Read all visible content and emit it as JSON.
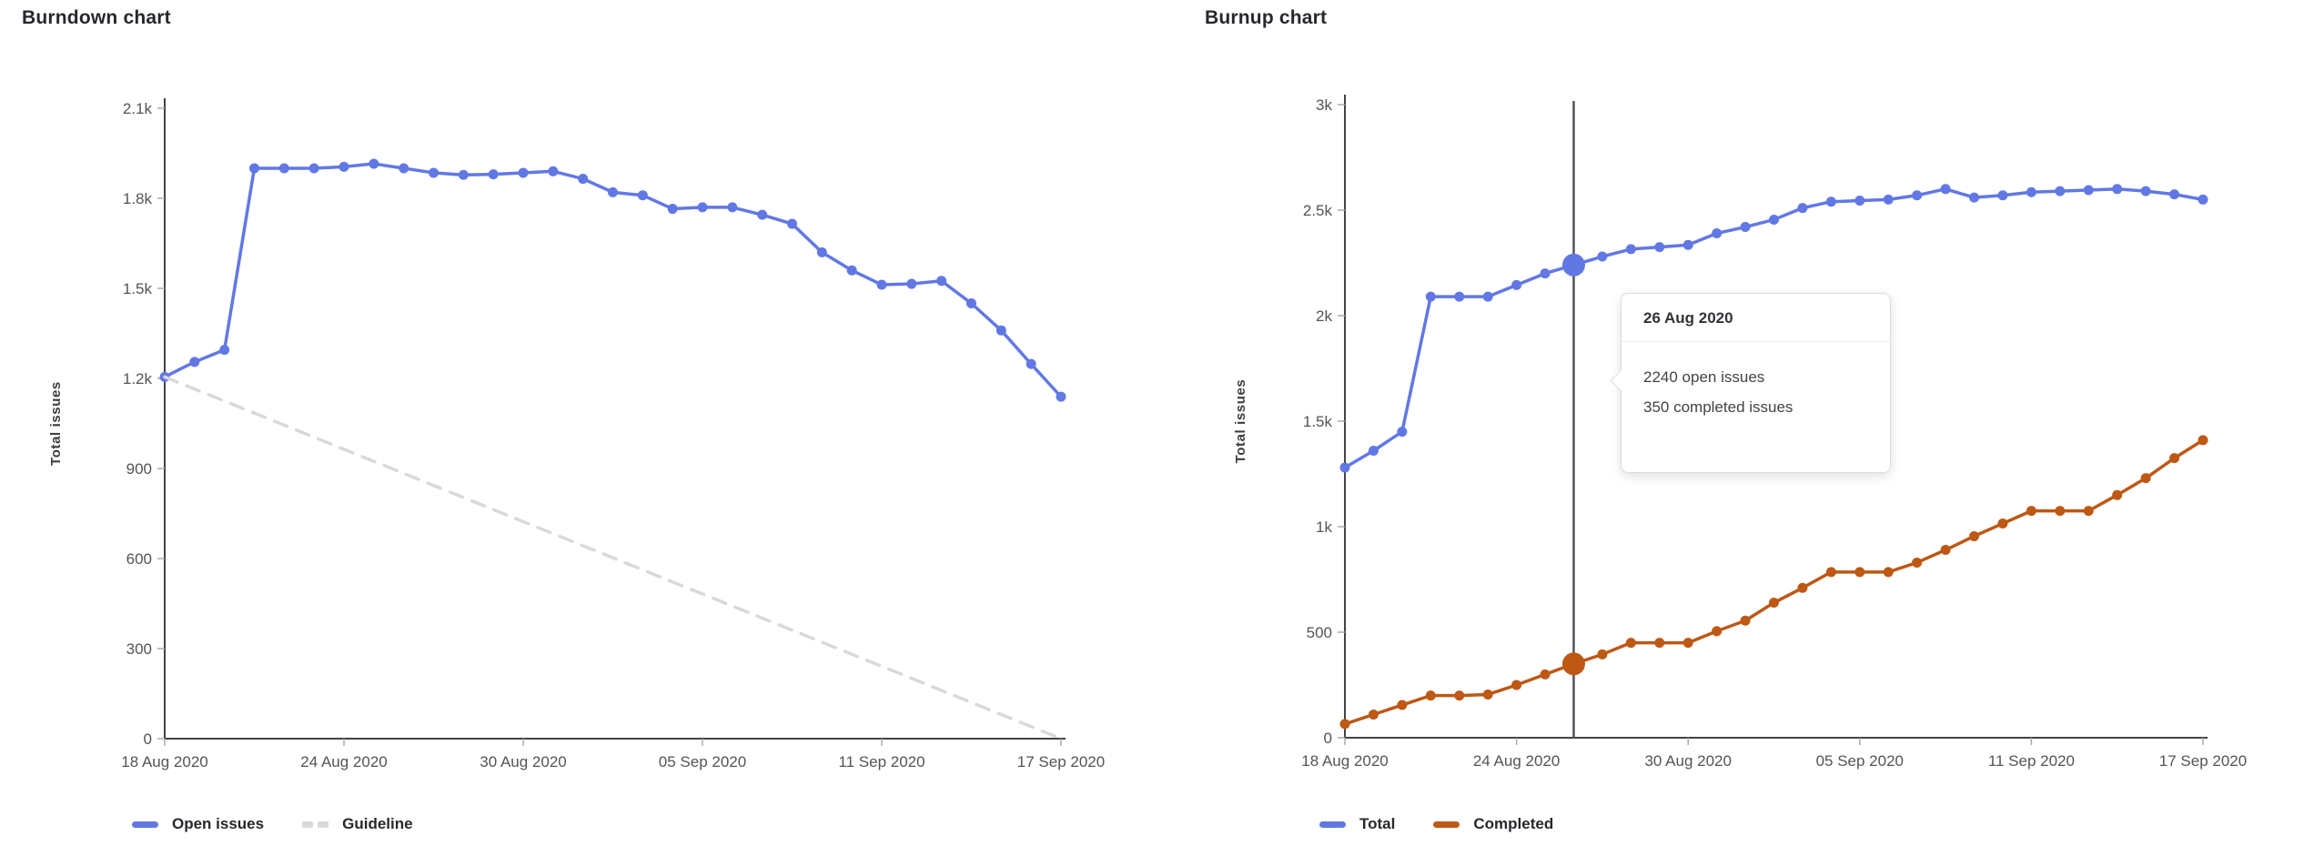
{
  "page": {
    "background": "#ffffff"
  },
  "chart_data": [
    {
      "id": "burndown",
      "type": "line",
      "title": "Burndown chart",
      "ylabel": "Total issues",
      "xlabel": "",
      "ylim": [
        0,
        2100
      ],
      "x_days": 31,
      "x_tick_days": [
        0,
        6,
        12,
        18,
        24,
        30
      ],
      "x_tick_labels": [
        "18 Aug 2020",
        "24 Aug 2020",
        "30 Aug 2020",
        "05 Sep 2020",
        "11 Sep 2020",
        "17 Sep 2020"
      ],
      "y_tick_labels": [
        "0",
        "300",
        "600",
        "900",
        "1.2k",
        "1.5k",
        "1.8k",
        "2.1k"
      ],
      "grid": false,
      "legend_position": "bottom-left",
      "series": [
        {
          "name": "Open issues",
          "color": "#6178e4",
          "style": "solid",
          "marker": true,
          "values": [
            1205,
            1255,
            1295,
            1900,
            1900,
            1900,
            1905,
            1915,
            1900,
            1885,
            1878,
            1880,
            1885,
            1890,
            1865,
            1820,
            1810,
            1765,
            1770,
            1770,
            1745,
            1715,
            1620,
            1560,
            1512,
            1515,
            1525,
            1450,
            1360,
            1248,
            1139
          ]
        },
        {
          "name": "Guideline",
          "color": "#d9d9d9",
          "style": "dashed",
          "marker": false,
          "from": [
            0,
            1205
          ],
          "to": [
            30,
            0
          ]
        }
      ]
    },
    {
      "id": "burnup",
      "type": "line",
      "title": "Burnup chart",
      "ylabel": "Total issues",
      "xlabel": "",
      "ylim": [
        0,
        3000
      ],
      "x_days": 31,
      "x_tick_days": [
        0,
        6,
        12,
        18,
        24,
        30
      ],
      "x_tick_labels": [
        "18 Aug 2020",
        "24 Aug 2020",
        "30 Aug 2020",
        "05 Sep 2020",
        "11 Sep 2020",
        "17 Sep 2020"
      ],
      "y_tick_labels": [
        "0",
        "500",
        "1k",
        "1.5k",
        "2k",
        "2.5k",
        "3k"
      ],
      "grid": false,
      "legend_position": "bottom-left",
      "crosshair_index": 8,
      "crosshair_color": "#54545c",
      "highlight_index": 8,
      "tooltip": {
        "date": "26 Aug 2020",
        "lines": [
          "2240 open issues",
          "350 completed issues"
        ]
      },
      "series": [
        {
          "name": "Total",
          "color": "#6178e4",
          "style": "solid",
          "marker": true,
          "values": [
            1280,
            1360,
            1450,
            2090,
            2090,
            2090,
            2145,
            2200,
            2240,
            2280,
            2315,
            2325,
            2335,
            2390,
            2420,
            2455,
            2510,
            2540,
            2545,
            2550,
            2570,
            2600,
            2560,
            2570,
            2585,
            2590,
            2595,
            2600,
            2590,
            2575,
            2550
          ]
        },
        {
          "name": "Completed",
          "color": "#bd5815",
          "style": "solid",
          "marker": true,
          "values": [
            65,
            110,
            155,
            200,
            200,
            205,
            250,
            300,
            350,
            395,
            450,
            450,
            450,
            505,
            555,
            640,
            710,
            785,
            785,
            785,
            830,
            890,
            955,
            1015,
            1075,
            1075,
            1075,
            1150,
            1230,
            1325,
            1410
          ]
        }
      ]
    }
  ]
}
